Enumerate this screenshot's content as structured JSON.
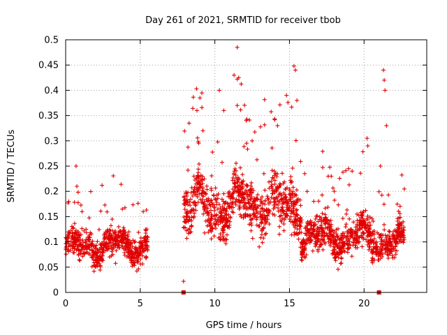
{
  "chart_data": {
    "type": "scatter",
    "title": "Day 261 of 2021, SRMTID for receiver tbob",
    "xlabel": "GPS time / hours",
    "ylabel": "SRMTID / TECUs",
    "xlim": [
      0,
      24.2
    ],
    "ylim": [
      0,
      0.5
    ],
    "xticks": [
      0,
      5,
      10,
      15,
      20
    ],
    "xtick_labels": [
      "0",
      "5",
      "10",
      "15",
      "20"
    ],
    "yticks": [
      0,
      0.05,
      0.1,
      0.15,
      0.2,
      0.25,
      0.3,
      0.35,
      0.4,
      0.45,
      0.5
    ],
    "ytick_labels": [
      "0",
      "0.05",
      "0.1",
      "0.15",
      "0.2",
      "0.25",
      "0.3",
      "0.35",
      "0.4",
      "0.45",
      "0.5"
    ],
    "grid": true,
    "marker": "+",
    "color": "#e00000",
    "zero_markers": [
      7.9,
      21.0
    ],
    "series": [
      {
        "name": "SRMTID",
        "segments": [
          {
            "x_start": 0.0,
            "x_end": 5.5,
            "base": 0.092,
            "spread": 0.028,
            "spikes": [
              [
                0.7,
                0.25
              ],
              [
                0.75,
                0.21
              ],
              [
                1.1,
                0.16
              ],
              [
                3.8,
                0.165
              ],
              [
                5.2,
                0.16
              ]
            ]
          },
          {
            "x_start": 7.9,
            "x_end": 11.0,
            "base": 0.17,
            "spread": 0.05,
            "spikes": [
              [
                7.9,
                0.022
              ],
              [
                8.8,
                0.36
              ],
              [
                9.0,
                0.385
              ],
              [
                9.2,
                0.32
              ],
              [
                10.3,
                0.4
              ],
              [
                10.6,
                0.36
              ]
            ]
          },
          {
            "x_start": 11.0,
            "x_end": 13.5,
            "base": 0.18,
            "spread": 0.05,
            "spikes": [
              [
                11.5,
                0.485
              ],
              [
                11.6,
                0.425
              ],
              [
                11.5,
                0.37
              ],
              [
                12.1,
                0.34
              ],
              [
                12.5,
                0.3
              ]
            ]
          },
          {
            "x_start": 13.5,
            "x_end": 15.8,
            "base": 0.17,
            "spread": 0.05,
            "spikes": [
              [
                14.8,
                0.39
              ],
              [
                15.3,
                0.448
              ],
              [
                15.4,
                0.44
              ],
              [
                15.5,
                0.38
              ],
              [
                14.2,
                0.33
              ]
            ]
          },
          {
            "x_start": 15.8,
            "x_end": 20.5,
            "base": 0.11,
            "spread": 0.035,
            "spikes": [
              [
                17.6,
                0.23
              ],
              [
                18.0,
                0.2
              ],
              [
                19.2,
                0.24
              ],
              [
                20.2,
                0.305
              ],
              [
                20.25,
                0.29
              ]
            ]
          },
          {
            "x_start": 20.5,
            "x_end": 22.7,
            "base": 0.1,
            "spread": 0.03,
            "spikes": [
              [
                21.3,
                0.44
              ],
              [
                21.35,
                0.42
              ],
              [
                21.4,
                0.4
              ],
              [
                21.5,
                0.33
              ],
              [
                21.1,
                0.25
              ]
            ]
          }
        ]
      }
    ]
  }
}
